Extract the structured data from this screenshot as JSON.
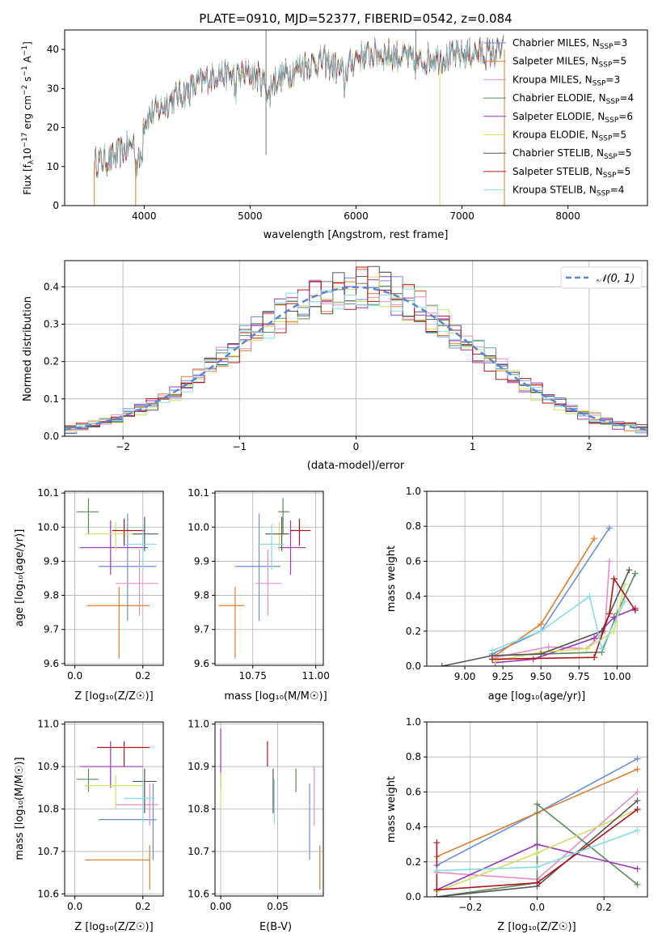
{
  "title": "PLATE=0910, MJD=52377, FIBERID=0542, z=0.084",
  "colors": {
    "series": [
      "#6b8fdb",
      "#e27c2a",
      "#e68ec4",
      "#5b8a5b",
      "#9c38b8",
      "#cfe063",
      "#555555",
      "#b0151b",
      "#86dde3"
    ],
    "model_curve": "#5b86d6",
    "grid": "#b0b0b0",
    "frame": "#000000"
  },
  "legend_models": [
    {
      "name": "Chabrier MILES",
      "nssp_label": "N",
      "nssp_sub": "SSP",
      "nssp_value": "=3"
    },
    {
      "name": "Salpeter MILES",
      "nssp_label": "N",
      "nssp_sub": "SSP",
      "nssp_value": "=5"
    },
    {
      "name": "Kroupa MILES",
      "nssp_label": "N",
      "nssp_sub": "SSP",
      "nssp_value": "=3"
    },
    {
      "name": "Chabrier ELODIE",
      "nssp_label": "N",
      "nssp_sub": "SSP",
      "nssp_value": "=4"
    },
    {
      "name": "Salpeter ELODIE",
      "nssp_label": "N",
      "nssp_sub": "SSP",
      "nssp_value": "=6"
    },
    {
      "name": "Kroupa ELODIE",
      "nssp_label": "N",
      "nssp_sub": "SSP",
      "nssp_value": "=5"
    },
    {
      "name": "Chabrier STELIB",
      "nssp_label": "N",
      "nssp_sub": "SSP",
      "nssp_value": "=5"
    },
    {
      "name": "Salpeter STELIB",
      "nssp_label": "N",
      "nssp_sub": "SSP",
      "nssp_value": "=5"
    },
    {
      "name": "Kroupa STELIB",
      "nssp_label": "N",
      "nssp_sub": "SSP",
      "nssp_value": "=4"
    }
  ],
  "chart_data": [
    {
      "id": "spectrum",
      "type": "line",
      "xlabel": "wavelength [Angstrom, rest frame]",
      "ylabel": "Flux [f_λ10^-17 erg cm^-2 s^-1 A^-1]",
      "ylabel_parts": {
        "a": "Flux [f",
        "b": "λ",
        "c": "10",
        "d": "−17",
        "e": " erg cm",
        "f": "−2",
        "g": " s",
        "h": "−1",
        "i": " A",
        "j": "−1",
        "k": "]"
      },
      "xlim": [
        3250,
        8750
      ],
      "ylim": [
        0,
        45
      ],
      "xticks": [
        4000,
        5000,
        6000,
        7000,
        8000
      ],
      "yticks": [
        0,
        10,
        20,
        30,
        40
      ],
      "grid": false,
      "legend_position": "upper-right",
      "spectrum_x": [
        3530,
        3700,
        3850,
        3950,
        4000,
        4150,
        4300,
        4400,
        4500,
        4700,
        4860,
        5000,
        5175,
        5300,
        5500,
        5700,
        5890,
        6000,
        6200,
        6500,
        6563,
        6700,
        6900,
        7100,
        7300,
        7400
      ],
      "spectrum_y": [
        11,
        12,
        15,
        17,
        22,
        25,
        28,
        29,
        31,
        34,
        33,
        34,
        31,
        33,
        36,
        37,
        34,
        38,
        39,
        38,
        36,
        38,
        38,
        39,
        39,
        40
      ]
    },
    {
      "id": "residuals",
      "type": "line",
      "xlabel": "(data-model)/error",
      "ylabel": "Normed distribution",
      "xlim": [
        -2.5,
        2.5
      ],
      "ylim": [
        0,
        0.47
      ],
      "xticks": [
        -2,
        -1,
        0,
        1,
        2
      ],
      "xtick_labels": [
        "−2",
        "−1",
        "0",
        "1",
        "2"
      ],
      "yticks": [
        0.0,
        0.1,
        0.2,
        0.3,
        0.4
      ],
      "ytick_labels": [
        "0.0",
        "0.1",
        "0.2",
        "0.3",
        "0.4"
      ],
      "grid": true,
      "legend_position": "upper-right",
      "series": [
        {
          "name": "𝒩(0, 1)"
        }
      ],
      "bin_width": 0.1
    },
    {
      "id": "age_vs_Z",
      "type": "scatter",
      "xlabel": "Z [log₁₀(Z/Z☉)]",
      "ylabel": "age  [log₁₀(age/yr)]",
      "xlim": [
        -0.03,
        0.26
      ],
      "ylim": [
        9.595,
        10.105
      ],
      "xticks": [
        0.0,
        0.2
      ],
      "xtick_labels": [
        "0.0",
        "0.2"
      ],
      "yticks": [
        9.6,
        9.7,
        9.8,
        9.9,
        10.0,
        10.1
      ],
      "ytick_labels": [
        "9.6",
        "9.7",
        "9.8",
        "9.9",
        "10.0",
        "10.1"
      ],
      "grid": true,
      "points": [
        {
          "x": 0.155,
          "y": 9.885,
          "xerr": [
            0.07,
            0.24
          ],
          "yerr": [
            9.725,
            10.04
          ]
        },
        {
          "x": 0.13,
          "y": 9.77,
          "xerr": [
            0.035,
            0.22
          ],
          "yerr": [
            9.615,
            9.825
          ]
        },
        {
          "x": 0.19,
          "y": 9.835,
          "xerr": [
            0.12,
            0.245
          ],
          "yerr": [
            9.74,
            9.935
          ]
        },
        {
          "x": 0.04,
          "y": 10.045,
          "xerr": [
            0.005,
            0.07
          ],
          "yerr": [
            9.98,
            10.085
          ]
        },
        {
          "x": 0.105,
          "y": 9.94,
          "xerr": [
            0.015,
            0.215
          ],
          "yerr": [
            9.86,
            10.02
          ]
        },
        {
          "x": 0.12,
          "y": 9.98,
          "xerr": [
            0.03,
            0.2
          ],
          "yerr": [
            9.93,
            10.015
          ]
        },
        {
          "x": 0.205,
          "y": 9.98,
          "xerr": [
            0.17,
            0.245
          ],
          "yerr": [
            9.93,
            10.03
          ]
        },
        {
          "x": 0.145,
          "y": 9.99,
          "xerr": [
            0.11,
            0.205
          ],
          "yerr": [
            9.945,
            10.025
          ]
        },
        {
          "x": 0.2,
          "y": 9.95,
          "xerr": [
            0.145,
            0.24
          ],
          "yerr": [
            9.875,
            10.01
          ]
        }
      ]
    },
    {
      "id": "age_vs_mass",
      "type": "scatter",
      "xlabel": "mass [log₁₀(M/M☉)]",
      "ylabel": "",
      "xlim": [
        10.6,
        11.03
      ],
      "ylim": [
        9.595,
        10.105
      ],
      "xticks": [
        10.75,
        11.0
      ],
      "xtick_labels": [
        "10.75",
        "11.00"
      ],
      "yticks": [
        9.6,
        9.7,
        9.8,
        9.9,
        10.0,
        10.1
      ],
      "ytick_labels": [
        "9.6",
        "9.7",
        "9.8",
        "9.9",
        "10.0",
        "10.1"
      ],
      "grid": true,
      "points": [
        {
          "x": 10.775,
          "y": 9.885,
          "xerr": [
            10.68,
            10.86
          ],
          "yerr": [
            9.725,
            10.04
          ]
        },
        {
          "x": 10.68,
          "y": 9.77,
          "xerr": [
            10.615,
            10.715
          ],
          "yerr": [
            9.615,
            9.825
          ]
        },
        {
          "x": 10.81,
          "y": 9.835,
          "xerr": [
            10.76,
            10.865
          ],
          "yerr": [
            9.74,
            9.935
          ]
        },
        {
          "x": 10.87,
          "y": 10.045,
          "xerr": [
            10.85,
            10.895
          ],
          "yerr": [
            9.98,
            10.085
          ]
        },
        {
          "x": 10.9,
          "y": 9.94,
          "xerr": [
            10.85,
            10.96
          ],
          "yerr": [
            9.86,
            10.02
          ]
        },
        {
          "x": 10.855,
          "y": 9.98,
          "xerr": [
            10.8,
            10.88
          ],
          "yerr": [
            9.93,
            10.015
          ]
        },
        {
          "x": 10.865,
          "y": 9.98,
          "xerr": [
            10.8,
            10.895
          ],
          "yerr": [
            9.93,
            10.03
          ]
        },
        {
          "x": 10.935,
          "y": 9.99,
          "xerr": [
            10.9,
            10.98
          ],
          "yerr": [
            9.945,
            10.025
          ]
        },
        {
          "x": 10.825,
          "y": 9.95,
          "xerr": [
            10.77,
            10.875
          ],
          "yerr": [
            9.875,
            10.01
          ]
        }
      ]
    },
    {
      "id": "mass_weight_vs_age",
      "type": "line",
      "xlabel": "age  [log₁₀(age/yr)]",
      "ylabel": "mass weight",
      "xlim": [
        8.75,
        10.2
      ],
      "ylim": [
        0,
        1.0
      ],
      "xticks": [
        9.0,
        9.25,
        9.5,
        9.75,
        10.0
      ],
      "xtick_labels": [
        "9.00",
        "9.25",
        "9.50",
        "9.75",
        "10.00"
      ],
      "yticks": [
        0.0,
        0.2,
        0.4,
        0.6,
        0.8,
        1.0
      ],
      "ytick_labels": [
        "0.0",
        "0.2",
        "0.4",
        "0.6",
        "0.8",
        "1.0"
      ],
      "grid": true,
      "series": [
        {
          "x": [
            9.18,
            9.5,
            9.95
          ],
          "y": [
            0.07,
            0.2,
            0.79
          ]
        },
        {
          "x": [
            9.2,
            9.5,
            9.85
          ],
          "y": [
            0.06,
            0.24,
            0.73
          ]
        },
        {
          "x": [
            9.2,
            9.55,
            9.8,
            9.92,
            9.95
          ],
          "y": [
            0.05,
            0.11,
            0.1,
            0.2,
            0.6
          ]
        },
        {
          "x": [
            9.18,
            9.9,
            10.0,
            10.12
          ],
          "y": [
            0.06,
            0.08,
            0.3,
            0.53
          ]
        },
        {
          "x": [
            9.2,
            9.45,
            9.85,
            9.98,
            10.12
          ],
          "y": [
            0.02,
            0.04,
            0.16,
            0.28,
            0.33
          ]
        },
        {
          "x": [
            9.2,
            9.5,
            9.8,
            9.98,
            10.05
          ],
          "y": [
            0.03,
            0.08,
            0.1,
            0.2,
            0.47
          ]
        },
        {
          "x": [
            8.85,
            9.18,
            9.5,
            9.9,
            10.08
          ],
          "y": [
            0.0,
            0.06,
            0.07,
            0.2,
            0.55
          ]
        },
        {
          "x": [
            9.18,
            9.85,
            9.95,
            9.98,
            10.12
          ],
          "y": [
            0.04,
            0.05,
            0.3,
            0.5,
            0.32
          ]
        },
        {
          "x": [
            9.18,
            9.5,
            9.82,
            9.9,
            10.05
          ],
          "y": [
            0.09,
            0.2,
            0.4,
            0.1,
            0.37
          ]
        }
      ]
    },
    {
      "id": "mass_vs_Z",
      "type": "scatter",
      "xlabel": "Z [log₁₀(Z/Z☉)]",
      "ylabel": "mass [log₁₀(M/M☉)]",
      "xlim": [
        -0.03,
        0.26
      ],
      "ylim": [
        10.595,
        11.005
      ],
      "xticks": [
        0.0,
        0.2
      ],
      "xtick_labels": [
        "0.0",
        "0.2"
      ],
      "yticks": [
        10.6,
        10.7,
        10.8,
        10.9,
        11.0
      ],
      "ytick_labels": [
        "10.6",
        "10.7",
        "10.8",
        "10.9",
        "11.0"
      ],
      "grid": true,
      "points": [
        {
          "x": 0.23,
          "y": 10.775,
          "xerr": [
            0.07,
            0.24
          ],
          "yerr": [
            10.68,
            10.86
          ]
        },
        {
          "x": 0.22,
          "y": 10.68,
          "xerr": [
            0.03,
            0.22
          ],
          "yerr": [
            10.61,
            10.715
          ]
        },
        {
          "x": 0.22,
          "y": 10.81,
          "xerr": [
            0.12,
            0.245
          ],
          "yerr": [
            10.76,
            10.86
          ]
        },
        {
          "x": 0.04,
          "y": 10.87,
          "xerr": [
            0.005,
            0.07
          ],
          "yerr": [
            10.84,
            10.895
          ]
        },
        {
          "x": 0.105,
          "y": 10.9,
          "xerr": [
            0.015,
            0.2
          ],
          "yerr": [
            10.85,
            10.96
          ]
        },
        {
          "x": 0.12,
          "y": 10.855,
          "xerr": [
            0.03,
            0.2
          ],
          "yerr": [
            10.8,
            10.88
          ]
        },
        {
          "x": 0.205,
          "y": 10.865,
          "xerr": [
            0.17,
            0.24
          ],
          "yerr": [
            10.79,
            10.895
          ]
        },
        {
          "x": 0.145,
          "y": 10.945,
          "xerr": [
            0.065,
            0.22
          ],
          "yerr": [
            10.9,
            10.96
          ]
        },
        {
          "x": 0.2,
          "y": 10.825,
          "xerr": [
            0.145,
            0.235
          ],
          "yerr": [
            10.77,
            10.87
          ]
        }
      ]
    },
    {
      "id": "mass_vs_ebv",
      "type": "scatter",
      "xlabel": "E(B-V)",
      "ylabel": "",
      "xlim": [
        -0.005,
        0.09
      ],
      "ylim": [
        10.595,
        11.005
      ],
      "xticks": [
        0.0,
        0.05
      ],
      "xtick_labels": [
        "0.00",
        "0.05"
      ],
      "yticks": [
        10.6,
        10.7,
        10.8,
        10.9,
        11.0
      ],
      "ytick_labels": [
        "10.6",
        "10.7",
        "10.8",
        "10.9",
        "11.0"
      ],
      "grid": true,
      "points": [
        {
          "x": 0.078,
          "y": 10.775,
          "yerr": [
            10.68,
            10.86
          ]
        },
        {
          "x": 0.087,
          "y": 10.68,
          "yerr": [
            10.61,
            10.715
          ]
        },
        {
          "x": 0.082,
          "y": 10.81,
          "yerr": [
            10.76,
            10.9
          ]
        },
        {
          "x": 0.066,
          "y": 10.87,
          "yerr": [
            10.84,
            10.895
          ]
        },
        {
          "x": 0.0,
          "y": 10.9,
          "yerr": [
            10.85,
            10.99
          ]
        },
        {
          "x": 0.0,
          "y": 10.855,
          "yerr": [
            10.8,
            10.885
          ]
        },
        {
          "x": 0.046,
          "y": 10.865,
          "yerr": [
            10.79,
            10.895
          ]
        },
        {
          "x": 0.041,
          "y": 10.945,
          "yerr": [
            10.9,
            10.96
          ]
        },
        {
          "x": 0.047,
          "y": 10.825,
          "yerr": [
            10.765,
            10.87
          ]
        }
      ]
    },
    {
      "id": "mass_weight_vs_Z",
      "type": "line",
      "xlabel": "Z [log₁₀(Z/Z☉)]",
      "ylabel": "mass weight",
      "xlim": [
        -0.33,
        0.33
      ],
      "ylim": [
        0,
        1.0
      ],
      "xticks": [
        -0.2,
        0.0,
        0.2
      ],
      "xtick_labels": [
        "−0.2",
        "0.0",
        "0.2"
      ],
      "yticks": [
        0.0,
        0.2,
        0.4,
        0.6,
        0.8,
        1.0
      ],
      "ytick_labels": [
        "0.0",
        "0.2",
        "0.4",
        "0.6",
        "0.8",
        "1.0"
      ],
      "grid": true,
      "series": [
        {
          "x": [
            -0.3,
            0.0,
            0.3
          ],
          "y": [
            0.18,
            0.48,
            0.79
          ]
        },
        {
          "x": [
            -0.3,
            0.0,
            0.3
          ],
          "y": [
            0.23,
            0.48,
            0.73
          ]
        },
        {
          "x": [
            -0.3,
            0.0,
            0.3
          ],
          "y": [
            0.14,
            0.1,
            0.6
          ]
        },
        {
          "x": [
            -0.3,
            0.0,
            0.0,
            0.3
          ],
          "y": [
            0.0,
            0.08,
            0.53,
            0.07
          ]
        },
        {
          "x": [
            -0.3,
            0.0,
            0.3
          ],
          "y": [
            0.04,
            0.3,
            0.16
          ]
        },
        {
          "x": [
            -0.3,
            0.0,
            0.3
          ],
          "y": [
            0.03,
            0.25,
            0.5
          ]
        },
        {
          "x": [
            -0.3,
            0.0,
            0.3
          ],
          "y": [
            0.0,
            0.06,
            0.55
          ]
        },
        {
          "x": [
            -0.3,
            -0.3,
            0.0,
            0.3
          ],
          "y": [
            0.31,
            0.04,
            0.08,
            0.5
          ]
        },
        {
          "x": [
            -0.3,
            0.0,
            0.3
          ],
          "y": [
            0.15,
            0.17,
            0.38
          ]
        }
      ]
    }
  ]
}
